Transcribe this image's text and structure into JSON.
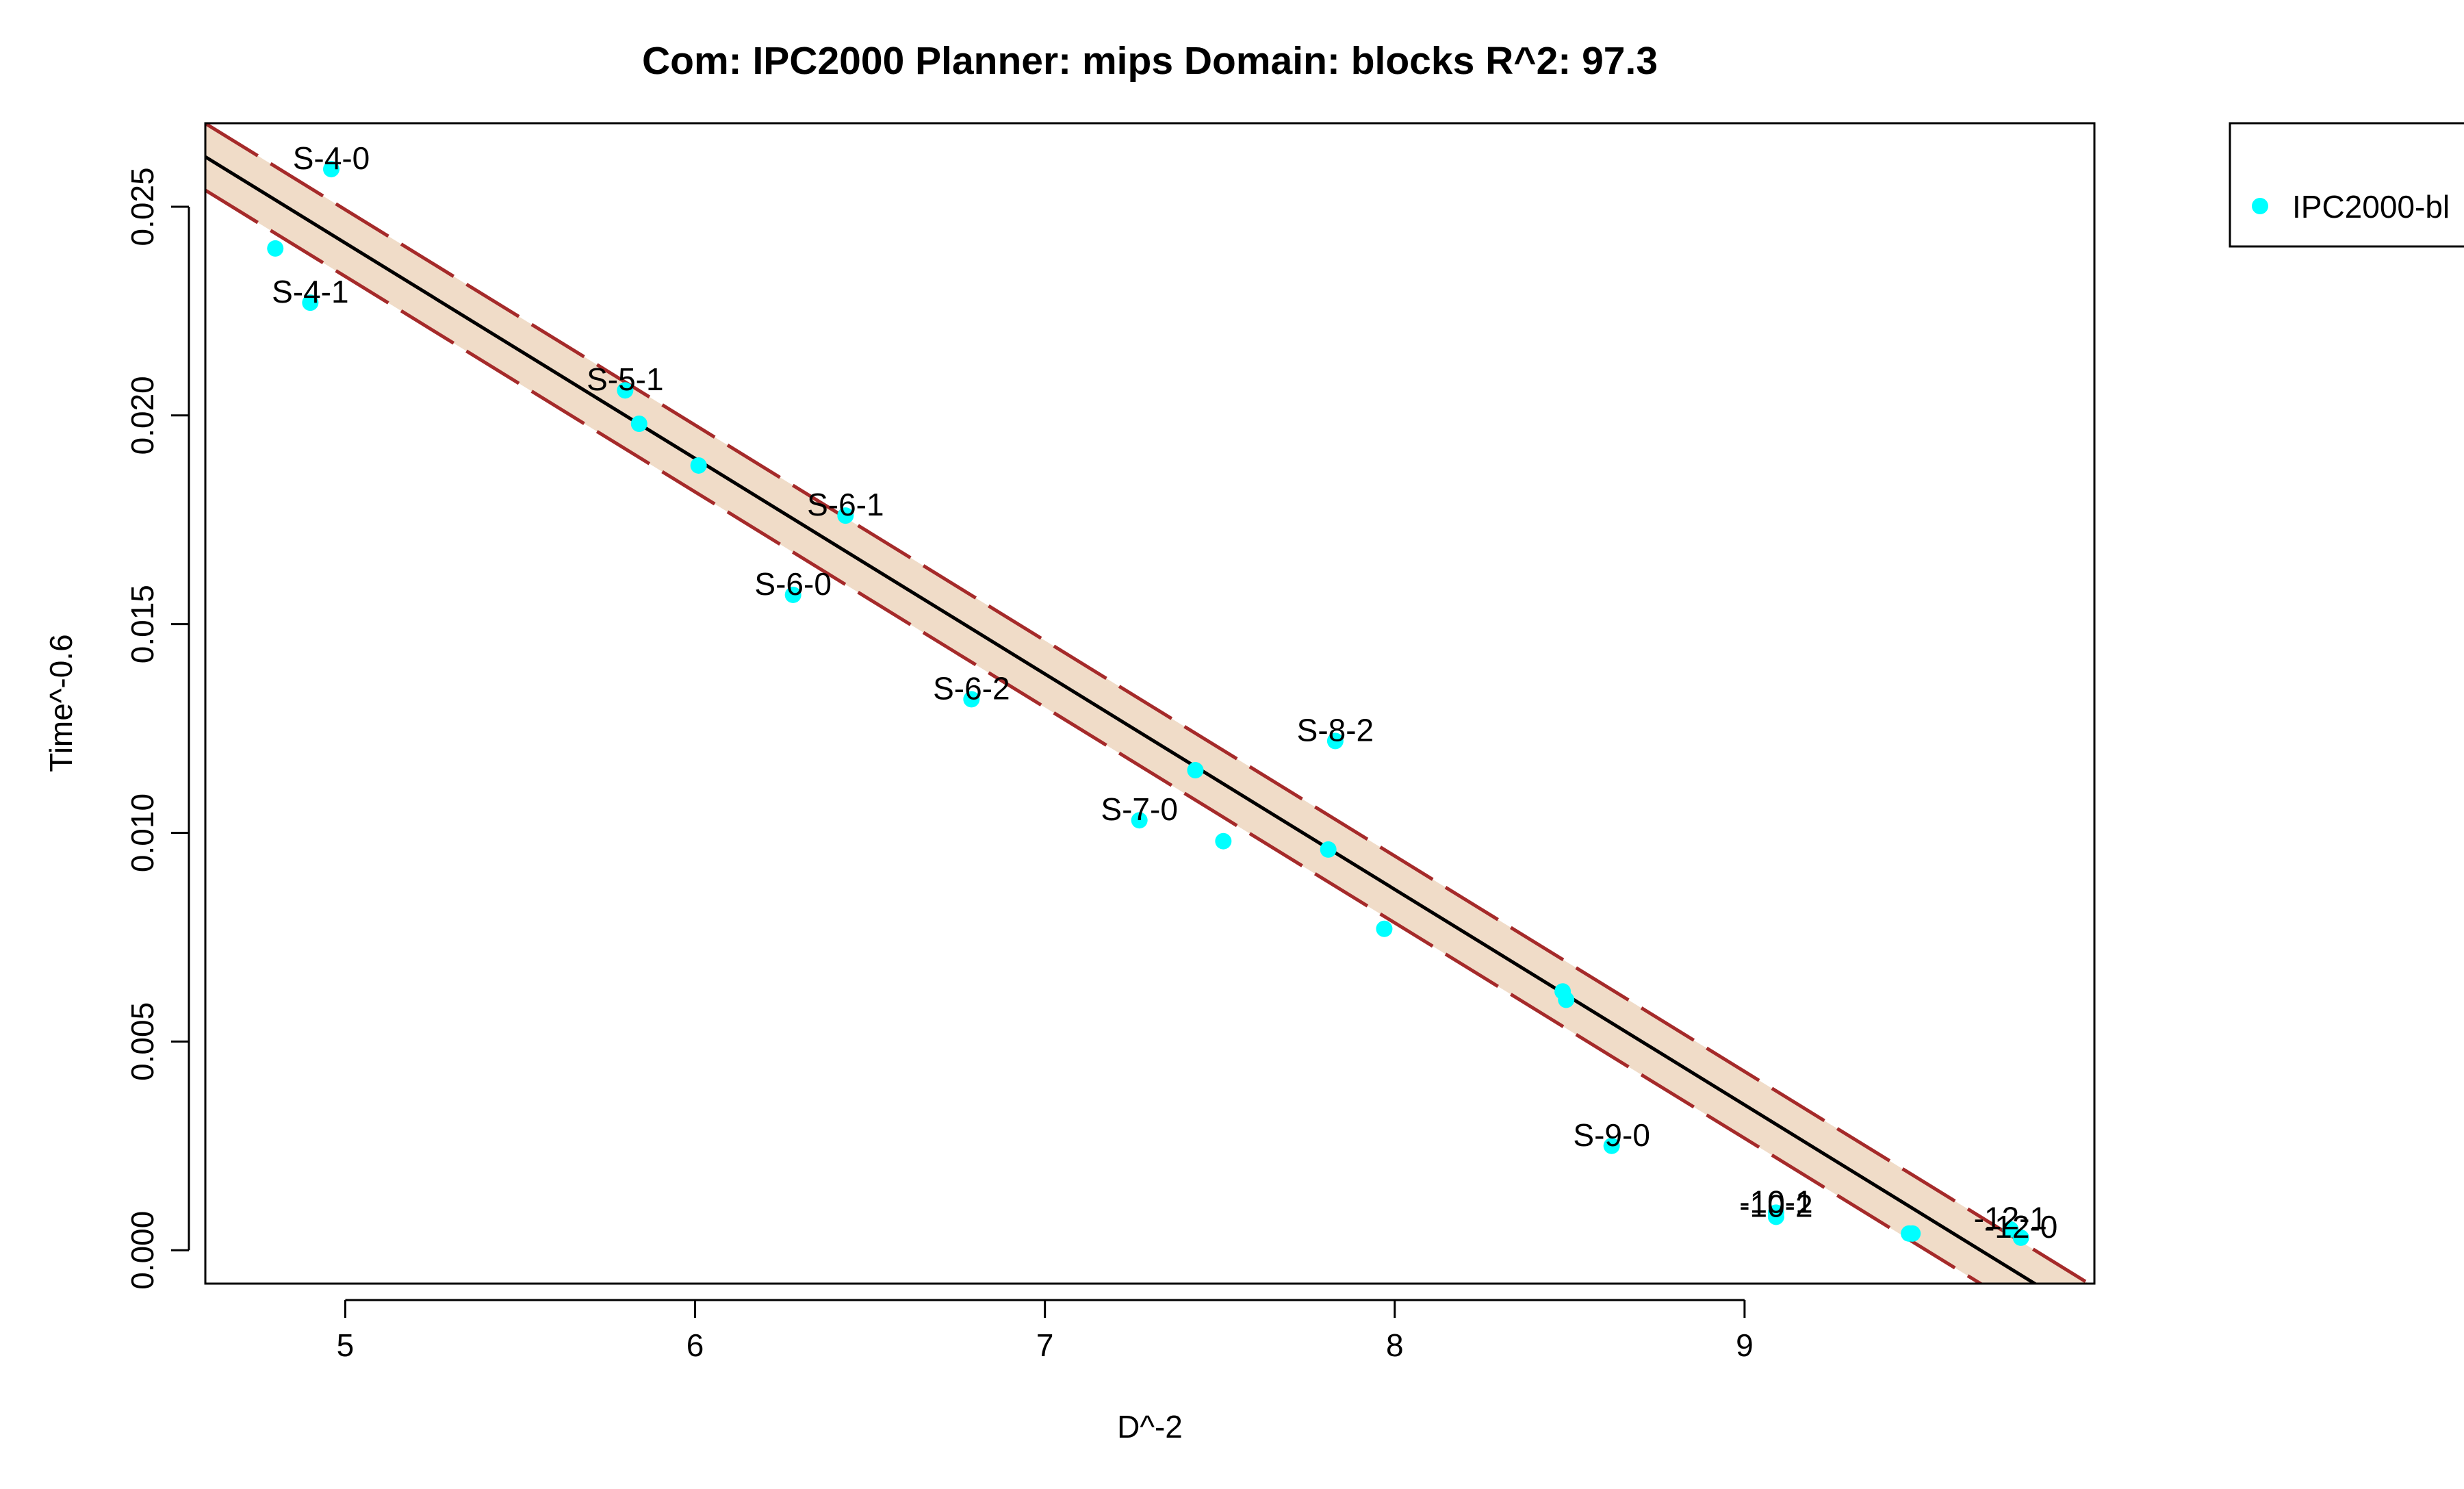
{
  "chart_data": {
    "type": "scatter",
    "title": "Com: IPC2000 Planner: mips Domain: blocks R^2: 97.3",
    "xlabel": "D^-2",
    "ylabel": "Time^-0.6",
    "xlim": [
      4.6,
      10.0
    ],
    "ylim": [
      -0.0008,
      0.027
    ],
    "x_ticks": [
      "5",
      "6",
      "7",
      "8",
      "9"
    ],
    "y_ticks": [
      "0.000",
      "0.005",
      "0.010",
      "0.015",
      "0.020",
      "0.025"
    ],
    "x_tick_values": [
      5,
      6,
      7,
      8,
      9
    ],
    "y_tick_values": [
      0.0,
      0.005,
      0.01,
      0.015,
      0.02,
      0.025
    ],
    "fit": {
      "intercept": 0.04994,
      "slope": -0.005162
    },
    "band_half_width": 0.0008,
    "legend": {
      "placement": "outside-right",
      "entries": [
        "IPC2000-bl"
      ]
    },
    "colors": {
      "points": "#00FFFF",
      "fit_line": "#000000",
      "band_fill": "#F0DCC8",
      "band_edge": "#A52A2A",
      "axes": "#000000"
    },
    "series": [
      {
        "name": "IPC2000-bl",
        "points": [
          {
            "x": 4.8,
            "y": 0.024,
            "label": ""
          },
          {
            "x": 4.9,
            "y": 0.0227,
            "label": "S-4-1"
          },
          {
            "x": 4.96,
            "y": 0.0259,
            "label": "S-4-0"
          },
          {
            "x": 5.8,
            "y": 0.0206,
            "label": "S-5-1"
          },
          {
            "x": 5.84,
            "y": 0.0198,
            "label": ""
          },
          {
            "x": 6.01,
            "y": 0.0188,
            "label": ""
          },
          {
            "x": 6.28,
            "y": 0.0157,
            "label": "S-6-0"
          },
          {
            "x": 6.43,
            "y": 0.0176,
            "label": "S-6-1"
          },
          {
            "x": 6.79,
            "y": 0.0132,
            "label": "S-6-2"
          },
          {
            "x": 7.27,
            "y": 0.0103,
            "label": "S-7-0"
          },
          {
            "x": 7.43,
            "y": 0.0115,
            "label": ""
          },
          {
            "x": 7.51,
            "y": 0.0098,
            "label": ""
          },
          {
            "x": 7.81,
            "y": 0.0096,
            "label": ""
          },
          {
            "x": 7.83,
            "y": 0.0122,
            "label": "S-8-2"
          },
          {
            "x": 7.97,
            "y": 0.0077,
            "label": ""
          },
          {
            "x": 8.48,
            "y": 0.0062,
            "label": ""
          },
          {
            "x": 8.49,
            "y": 0.006,
            "label": ""
          },
          {
            "x": 8.62,
            "y": 0.0025,
            "label": "S-9-0"
          },
          {
            "x": 9.09,
            "y": 0.0009,
            "label": "-10-1"
          },
          {
            "x": 9.09,
            "y": 0.0008,
            "label": "-10-2"
          },
          {
            "x": 9.47,
            "y": 0.0004,
            "label": ""
          },
          {
            "x": 9.48,
            "y": 0.0004,
            "label": ""
          },
          {
            "x": 9.76,
            "y": 0.0005,
            "label": "-12-1"
          },
          {
            "x": 9.79,
            "y": 0.0003,
            "label": "-12-0"
          }
        ]
      }
    ]
  }
}
